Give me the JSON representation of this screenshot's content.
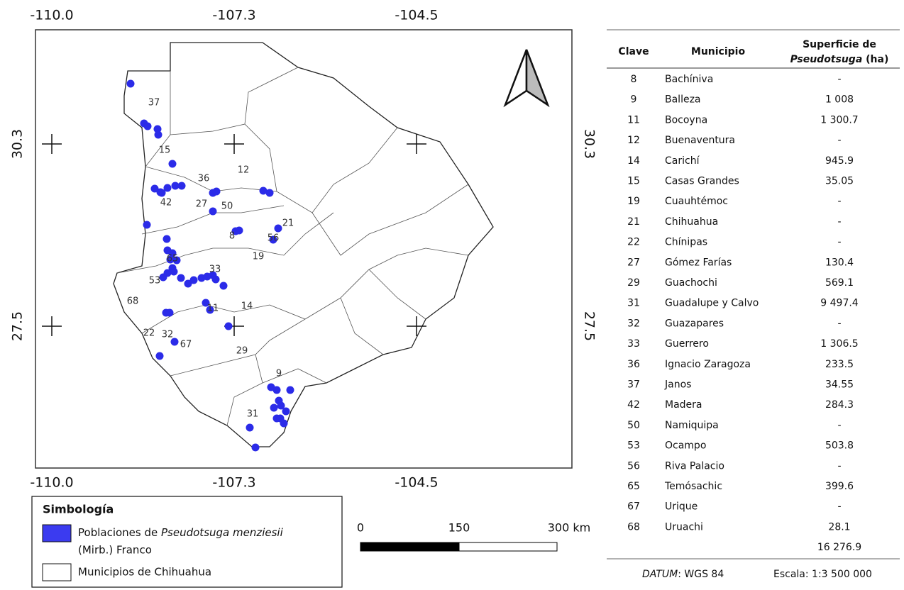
{
  "map": {
    "coords": {
      "top": [
        "-110.0",
        "-107.3",
        "-104.5"
      ],
      "bottom": [
        "-110.0",
        "-107.3",
        "-104.5"
      ],
      "left": [
        "30.3",
        "27.5"
      ],
      "right": [
        "30.3",
        "27.5"
      ]
    },
    "labels": [
      "37",
      "15",
      "36",
      "12",
      "42",
      "27",
      "50",
      "8",
      "21",
      "56",
      "19",
      "65",
      "53",
      "33",
      "68",
      "11",
      "14",
      "22",
      "32",
      "67",
      "29",
      "9",
      "31"
    ]
  },
  "legend": {
    "title": "Simbología",
    "items": [
      {
        "parts": [
          "Poblaciones de",
          "Pseudotsuga menziesii"
        ],
        "line2": "(Mirb.) Franco"
      },
      {
        "parts": [
          "Municipios de Chihuahua"
        ]
      }
    ]
  },
  "scale_bar": {
    "labels": [
      "0",
      "150",
      "300 km"
    ]
  },
  "table": {
    "headers": {
      "clave": "Clave",
      "municipio": "Municipio",
      "superficie": [
        "Superficie de",
        "Pseudotsuga",
        "(ha)"
      ]
    },
    "rows": [
      [
        8,
        "Bachíniva",
        "-"
      ],
      [
        9,
        "Balleza",
        "1 008"
      ],
      [
        11,
        "Bocoyna",
        "1 300.7"
      ],
      [
        12,
        "Buenaventura",
        "-"
      ],
      [
        14,
        "Carichí",
        "945.9"
      ],
      [
        15,
        "Casas Grandes",
        "35.05"
      ],
      [
        19,
        "Cuauhtémoc",
        "-"
      ],
      [
        21,
        "Chihuahua",
        "-"
      ],
      [
        22,
        "Chínipas",
        "-"
      ],
      [
        27,
        "Gómez Farías",
        "130.4"
      ],
      [
        29,
        "Guachochi",
        "569.1"
      ],
      [
        31,
        "Guadalupe y Calvo",
        "9 497.4"
      ],
      [
        32,
        "Guazapares",
        "-"
      ],
      [
        33,
        "Guerrero",
        "1 306.5"
      ],
      [
        36,
        "Ignacio Zaragoza",
        "233.5"
      ],
      [
        37,
        "Janos",
        "34.55"
      ],
      [
        42,
        "Madera",
        "284.3"
      ],
      [
        50,
        "Namiquipa",
        "-"
      ],
      [
        53,
        "Ocampo",
        "503.8"
      ],
      [
        56,
        "Riva Palacio",
        "-"
      ],
      [
        65,
        "Temósachic",
        "399.6"
      ],
      [
        67,
        "Urique",
        "-"
      ],
      [
        68,
        "Uruachi",
        "28.1"
      ]
    ],
    "total": "16 276.9"
  },
  "footer": {
    "datum_label": "DATUM",
    "datum_value": ": WGS 84",
    "scale": "Escala: 1:3 500 000"
  }
}
